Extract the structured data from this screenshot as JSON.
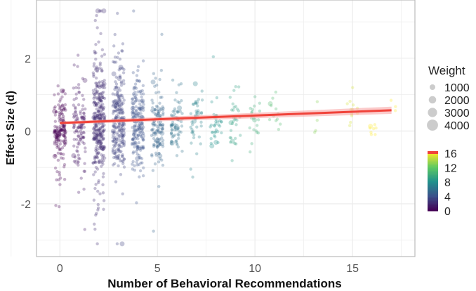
{
  "chart_data": {
    "type": "scatter",
    "xlabel": "Number of Behavioral Recommendations",
    "ylabel": "Effect Size (d)",
    "xlim": [
      -1.2,
      18.2
    ],
    "ylim": [
      -3.45,
      3.6
    ],
    "xticks": [
      0,
      5,
      10,
      15
    ],
    "yticks": [
      -2,
      0,
      2
    ],
    "grid": true,
    "point_groups": [
      {
        "x": 0,
        "n": 160,
        "mean": 0.05,
        "sd": 0.45
      },
      {
        "x": 1,
        "n": 110,
        "mean": 0.15,
        "sd": 0.6
      },
      {
        "x": 2,
        "n": 320,
        "mean": 0.2,
        "sd": 0.75
      },
      {
        "x": 3,
        "n": 230,
        "mean": 0.3,
        "sd": 0.7
      },
      {
        "x": 4,
        "n": 190,
        "mean": 0.25,
        "sd": 0.6
      },
      {
        "x": 5,
        "n": 120,
        "mean": 0.2,
        "sd": 0.55
      },
      {
        "x": 6,
        "n": 70,
        "mean": 0.2,
        "sd": 0.4
      },
      {
        "x": 7,
        "n": 40,
        "mean": 0.25,
        "sd": 0.35
      },
      {
        "x": 8,
        "n": 35,
        "mean": 0.2,
        "sd": 0.3
      },
      {
        "x": 9,
        "n": 30,
        "mean": 0.3,
        "sd": 0.4
      },
      {
        "x": 10,
        "n": 20,
        "mean": 0.3,
        "sd": 0.3
      },
      {
        "x": 11,
        "n": 12,
        "mean": 0.4,
        "sd": 0.25
      },
      {
        "x": 13,
        "n": 4,
        "mean": 0.3,
        "sd": 0.3
      },
      {
        "x": 15,
        "n": 12,
        "mean": 0.6,
        "sd": 0.3
      },
      {
        "x": 16,
        "n": 8,
        "mean": 0.0,
        "sd": 0.06
      },
      {
        "x": 17,
        "n": 3,
        "mean": 0.6,
        "sd": 0.1
      }
    ],
    "regression": {
      "x": [
        0,
        17
      ],
      "y": [
        0.22,
        0.57
      ],
      "ci": 0.1,
      "color": "#f0433a"
    },
    "legend_weight": {
      "title": "Weight",
      "labels": [
        "1000",
        "2000",
        "3000",
        "4000"
      ]
    },
    "legend_color": {
      "labels": [
        "16",
        "12",
        "8",
        "4",
        "0"
      ],
      "range": [
        0,
        16
      ]
    }
  }
}
